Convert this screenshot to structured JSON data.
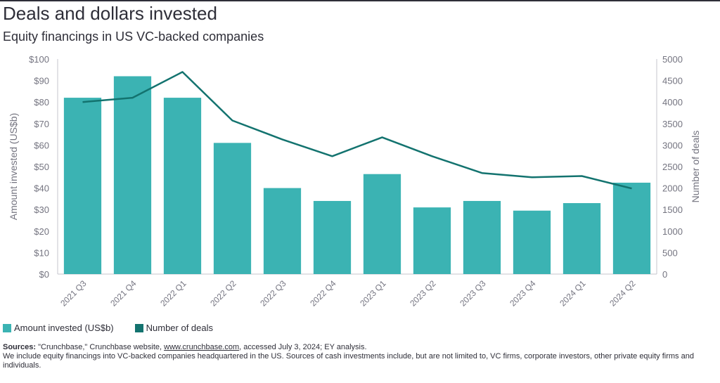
{
  "title": "Deals and dollars invested",
  "subtitle": "Equity financings in US VC-backed companies",
  "colors": {
    "bar": "#3bb3b3",
    "line": "#13736f",
    "text": "#2e2e38",
    "axis": "#747480"
  },
  "chart_data": {
    "type": "bar+line",
    "categories": [
      "2021 Q3",
      "2021 Q4",
      "2022 Q1",
      "2022 Q2",
      "2022 Q3",
      "2022 Q4",
      "2023 Q1",
      "2023 Q2",
      "2023 Q3",
      "2023 Q4",
      "2024 Q1",
      "2024 Q2"
    ],
    "series": [
      {
        "name": "Amount invested (US$b)",
        "type": "bar",
        "axis": "left",
        "values": [
          82,
          92,
          82,
          61,
          40,
          34,
          46.5,
          31,
          34,
          29.5,
          33,
          42.5
        ]
      },
      {
        "name": "Number of deals",
        "type": "line",
        "axis": "right",
        "values": [
          4000,
          4100,
          4700,
          3570,
          3130,
          2740,
          3180,
          2740,
          2350,
          2250,
          2280,
          1990
        ]
      }
    ],
    "ylabel": "Amount invested (US$b)",
    "y2label": "Number of deals",
    "ylim": [
      0,
      100
    ],
    "y2lim": [
      0,
      5000
    ],
    "yticks": [
      "$0",
      "$10",
      "$20",
      "$30",
      "$40",
      "$50",
      "$60",
      "$70",
      "$80",
      "$90",
      "$100"
    ],
    "y2ticks": [
      "0",
      "500",
      "1000",
      "1500",
      "2000",
      "2500",
      "3000",
      "3500",
      "4000",
      "4500",
      "5000"
    ],
    "grid": false,
    "legend": "bottom-left"
  },
  "legend": {
    "bar_label": "Amount invested (US$b)",
    "line_label": "Number of deals"
  },
  "notes": {
    "sources_label": "Sources:",
    "sources_pre": " \"Crunchbase,\" Crunchbase website, ",
    "sources_link": "www.crunchbase.com",
    "sources_post": ", accessed July 3, 2024; EY analysis.",
    "note": "We include equity financings into VC-backed companies headquartered in the US. Sources of cash investments include, but are not limited to, VC firms, corporate investors, other private equity firms and individuals."
  }
}
